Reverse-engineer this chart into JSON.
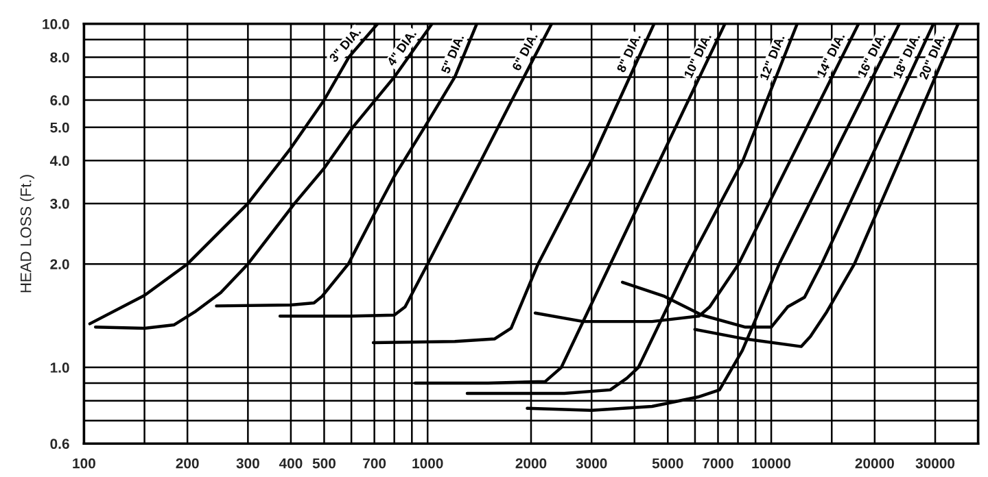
{
  "chart_data": {
    "type": "line",
    "ylabel": "HEAD LOSS (Ft.)",
    "log": "xy",
    "grid": true,
    "legend": false,
    "marker": "none",
    "line_style": "solid",
    "xlim": [
      100,
      40000
    ],
    "ylim": [
      0.6,
      10
    ],
    "xticks": [
      100,
      {
        "value": 150,
        "label": null
      },
      200,
      300,
      400,
      500,
      {
        "value": 600,
        "label": null
      },
      700,
      {
        "value": 800,
        "label": null
      },
      {
        "value": 900,
        "label": null
      },
      1000,
      2000,
      3000,
      {
        "value": 4000,
        "label": null
      },
      5000,
      {
        "value": 6000,
        "label": null
      },
      7000,
      {
        "value": 8000,
        "label": null
      },
      {
        "value": 9000,
        "label": null
      },
      10000,
      {
        "value": 15000,
        "label": null
      },
      20000,
      30000
    ],
    "yticks": [
      {
        "value": 0.6,
        "label": "0.6"
      },
      {
        "value": 0.7,
        "label": null
      },
      {
        "value": 0.8,
        "label": null
      },
      {
        "value": 0.9,
        "label": null
      },
      {
        "value": 1,
        "label": "1.0"
      },
      {
        "value": 2,
        "label": "2.0"
      },
      {
        "value": 3,
        "label": "3.0"
      },
      {
        "value": 4,
        "label": "4.0"
      },
      {
        "value": 5,
        "label": "5.0"
      },
      {
        "value": 6,
        "label": "6.0"
      },
      {
        "value": 7,
        "label": null
      },
      {
        "value": 8,
        "label": "8.0"
      },
      {
        "value": 9,
        "label": null
      },
      {
        "value": 10,
        "label": "10.0"
      }
    ],
    "series": [
      {
        "name": "3\" DIA.",
        "color": "#000000",
        "x": [
          104,
          150,
          200,
          300,
          400,
          500,
          590,
          715
        ],
        "values": [
          1.34,
          1.62,
          2.0,
          3.0,
          4.35,
          6.0,
          8.0,
          10
        ]
      },
      {
        "name": "4\" DIA.",
        "color": "#000000",
        "x": [
          108,
          150,
          183,
          210,
          250,
          300,
          410,
          500,
          606,
          800,
          1030
        ],
        "values": [
          1.31,
          1.3,
          1.33,
          1.45,
          1.65,
          2.0,
          3.0,
          3.8,
          5.0,
          7.0,
          10
        ]
      },
      {
        "name": "5\" DIA.",
        "color": "#000000",
        "x": [
          243,
          400,
          467,
          493,
          588,
          700,
          800,
          980,
          1200,
          1390
        ],
        "values": [
          1.51,
          1.52,
          1.54,
          1.61,
          2.0,
          2.8,
          3.6,
          5.0,
          7.0,
          10
        ]
      },
      {
        "name": "6\" DIA.",
        "color": "#000000",
        "x": [
          372,
          600,
          800,
          860,
          1000,
          1430,
          1760,
          2295
        ],
        "values": [
          1.41,
          1.41,
          1.42,
          1.5,
          2.0,
          4.0,
          6.0,
          10
        ]
      },
      {
        "name": "8\" DIA.",
        "color": "#000000",
        "x": [
          695,
          1200,
          1565,
          1750,
          2096,
          3000,
          4560
        ],
        "values": [
          1.18,
          1.19,
          1.21,
          1.3,
          2.0,
          4.0,
          10
        ]
      },
      {
        "name": "10\" DIA.",
        "color": "#000000",
        "x": [
          920,
          1500,
          2200,
          2450,
          3404,
          4735,
          7330
        ],
        "values": [
          0.9,
          0.9,
          0.91,
          1.0,
          2.0,
          4.0,
          10
        ]
      },
      {
        "name": "12\" DIA.",
        "color": "#000000",
        "x": [
          1304,
          2500,
          3400,
          3800,
          4107,
          5730,
          8270,
          11900
        ],
        "values": [
          0.84,
          0.84,
          0.86,
          0.93,
          1.0,
          2.0,
          4.0,
          10
        ]
      },
      {
        "name": "14\" DIA.",
        "color": "#000000",
        "x": [
          2057,
          2835,
          4500,
          6160,
          6620,
          8035,
          11360,
          17950
        ],
        "values": [
          1.44,
          1.36,
          1.36,
          1.41,
          1.5,
          2.0,
          4.0,
          10
        ]
      },
      {
        "name": "16\" DIA.",
        "color": "#000000",
        "x": [
          1950,
          3000,
          4500,
          6120,
          7070,
          8240,
          10550,
          14920,
          23600
        ],
        "values": [
          0.76,
          0.75,
          0.77,
          0.82,
          0.86,
          1.12,
          2.0,
          4.0,
          10
        ]
      },
      {
        "name": "18\" DIA.",
        "color": "#000000",
        "x": [
          3690,
          4890,
          6280,
          8410,
          10000,
          11160,
          12500,
          14020,
          19350,
          29650
        ],
        "values": [
          1.77,
          1.61,
          1.42,
          1.31,
          1.31,
          1.5,
          1.6,
          2.0,
          4.0,
          10
        ]
      },
      {
        "name": "20\" DIA.",
        "color": "#000000",
        "x": [
          5995,
          8400,
          12220,
          13000,
          14500,
          17460,
          23600,
          34980
        ],
        "values": [
          1.29,
          1.21,
          1.15,
          1.23,
          1.45,
          2.0,
          4.0,
          10
        ]
      }
    ]
  }
}
